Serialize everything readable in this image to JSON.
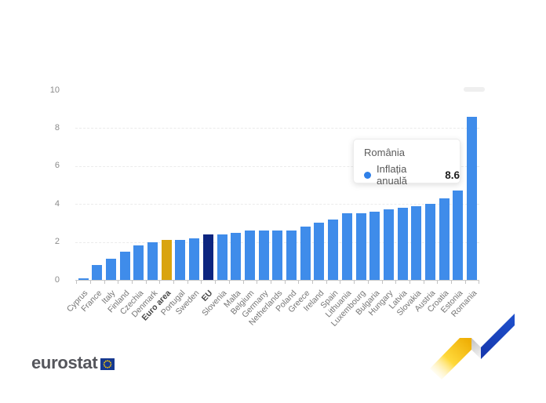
{
  "chart_data": {
    "type": "bar",
    "title": "",
    "xlabel": "",
    "ylabel": "",
    "ylim": [
      0,
      10
    ],
    "yticks": [
      0,
      2,
      4,
      6,
      8,
      10
    ],
    "grid": "horizontal dashed lines at 2, 4, 6, 8",
    "legend_position": "none",
    "categories": [
      "Cyprus",
      "France",
      "Italy",
      "Finland",
      "Czechia",
      "Denmark",
      "Euro area",
      "Portugal",
      "Sweden",
      "EU",
      "Slovenia",
      "Malta",
      "Belgium",
      "Germany",
      "Netherlands",
      "Poland",
      "Greece",
      "Ireland",
      "Spain",
      "Lithuania",
      "Luxembourg",
      "Bulgaria",
      "Hungary",
      "Latvia",
      "Slovakia",
      "Austria",
      "Croatia",
      "Estonia",
      "Romania"
    ],
    "values": [
      0.1,
      0.8,
      1.1,
      1.5,
      1.8,
      2.0,
      2.1,
      2.1,
      2.2,
      2.4,
      2.4,
      2.5,
      2.6,
      2.6,
      2.6,
      2.6,
      2.8,
      3.0,
      3.2,
      3.5,
      3.5,
      3.6,
      3.7,
      3.8,
      3.9,
      4.0,
      4.3,
      4.7,
      8.6
    ],
    "bold_categories": [
      "Euro area",
      "EU"
    ],
    "bar_color_default": "#3F8CEA",
    "bar_color_overrides": {
      "Euro area": "#D9A410",
      "EU": "#0D2580"
    }
  },
  "tooltip": {
    "title": "România",
    "series_label": "Inflația anuală",
    "value": "8.6",
    "dot_color": "#2F80E8"
  },
  "branding": {
    "logo_text": "eurostat"
  },
  "colors": {
    "grid": "#ebebeb",
    "axis": "#c9c9c9",
    "tick_label": "#8b8b8b",
    "x_label": "#757575",
    "x_label_bold": "#474747",
    "wordmark": "#55565C",
    "eu_flag_blue": "#16398F",
    "eu_star_yellow": "#FFCC00",
    "ribbon_yellow": "#FFD211",
    "ribbon_gray": "#D9D9D9",
    "ribbon_blue": "#1B46C6"
  }
}
